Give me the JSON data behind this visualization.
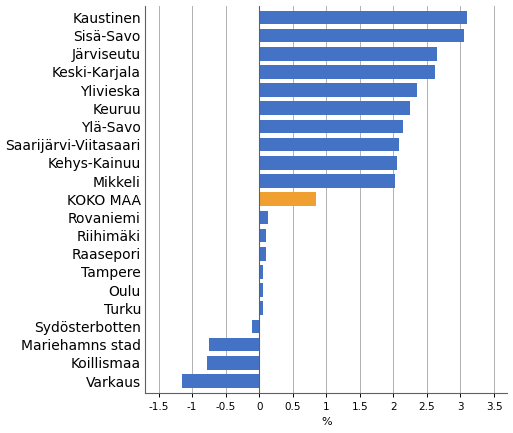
{
  "categories": [
    "Kaustinen",
    "Sisä-Savo",
    "Järviseutu",
    "Keski-Karjala",
    "Ylivieska",
    "Keuruu",
    "Ylä-Savo",
    "Saarijärvi-Viitasaari",
    "Kehys-Kainuu",
    "Mikkeli",
    "KOKO MAA",
    "Rovaniemi",
    "Riihimäki",
    "Raasepori",
    "Tampere",
    "Oulu",
    "Turku",
    "Sydösterbotten",
    "Mariehamns stad",
    "Koillismaa",
    "Varkaus"
  ],
  "values": [
    3.1,
    3.05,
    2.65,
    2.62,
    2.35,
    2.25,
    2.15,
    2.08,
    2.05,
    2.02,
    0.85,
    0.13,
    0.1,
    0.1,
    0.05,
    0.05,
    0.05,
    -0.1,
    -0.75,
    -0.78,
    -1.15
  ],
  "bar_colors": [
    "#4472c4",
    "#4472c4",
    "#4472c4",
    "#4472c4",
    "#4472c4",
    "#4472c4",
    "#4472c4",
    "#4472c4",
    "#4472c4",
    "#4472c4",
    "#f0a030",
    "#4472c4",
    "#4472c4",
    "#4472c4",
    "#4472c4",
    "#4472c4",
    "#4472c4",
    "#4472c4",
    "#4472c4",
    "#4472c4",
    "#4472c4"
  ],
  "xlabel": "%",
  "xlim": [
    -1.7,
    3.7
  ],
  "xticks": [
    -1.5,
    -1.0,
    -0.5,
    0.0,
    0.5,
    1.0,
    1.5,
    2.0,
    2.5,
    3.0,
    3.5
  ],
  "bar_height": 0.75,
  "grid_color": "#b0b0b0",
  "background_color": "#ffffff",
  "border_color": "#606060",
  "label_fontsize": 7.5,
  "tick_fontsize": 7.5
}
